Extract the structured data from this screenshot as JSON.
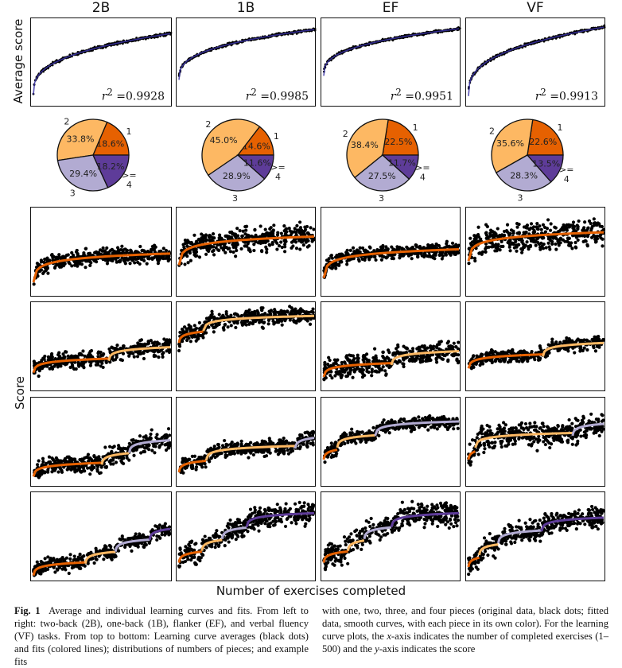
{
  "columns": [
    "2B",
    "1B",
    "EF",
    "VF"
  ],
  "y_label_top": "Average score",
  "y_label_bottom": "Score",
  "x_label": "Number of exercises completed",
  "r2_prefix": "r",
  "r2_values": [
    "=0.9928",
    "=0.9985",
    "=0.9951",
    "=0.9913"
  ],
  "pie_colors": {
    "1": "#e66101",
    "2": "#fdb863",
    "3": "#b2abd2",
    ">=4": "#5e3c99"
  },
  "pie_labels": [
    "1",
    "2",
    "3",
    ">=\n4"
  ],
  "pies": [
    {
      "task": "2B",
      "values": [
        18.6,
        33.8,
        29.4,
        18.2
      ],
      "labels": [
        "18.6%",
        "33.8%",
        "29.4%",
        "18.2%"
      ]
    },
    {
      "task": "1B",
      "values": [
        14.6,
        45.0,
        28.9,
        11.6
      ],
      "labels": [
        "14.6%",
        "45.0%",
        "28.9%",
        "11.6%"
      ]
    },
    {
      "task": "EF",
      "values": [
        22.5,
        38.4,
        27.5,
        11.7
      ],
      "labels": [
        "22.5%",
        "38.4%",
        "27.5%",
        "11.7%"
      ]
    },
    {
      "task": "VF",
      "values": [
        22.6,
        35.6,
        28.3,
        13.5
      ],
      "labels": [
        "22.6%",
        "35.6%",
        "28.3%",
        "13.5%"
      ]
    }
  ],
  "caption": {
    "label": "Fig. 1",
    "left": "Average and individual learning curves and fits. From left to right: two-back (2B), one-back (1B), flanker (EF), and verbal fluency (VF) tasks. From top to bottom: Learning curve averages (black dots) and fits (colored lines); distributions of numbers of pieces; and example fits",
    "right_a": "with one, two, three, and four pieces (original data, black dots; fitted data, smooth curves, with each piece in its own color). For the learning curve plots, the ",
    "x_italic": "x",
    "right_b": "-axis indicates the number of completed exercises (1–500) and the ",
    "y_italic": "y",
    "right_c": "-axis indicates the score"
  }
}
